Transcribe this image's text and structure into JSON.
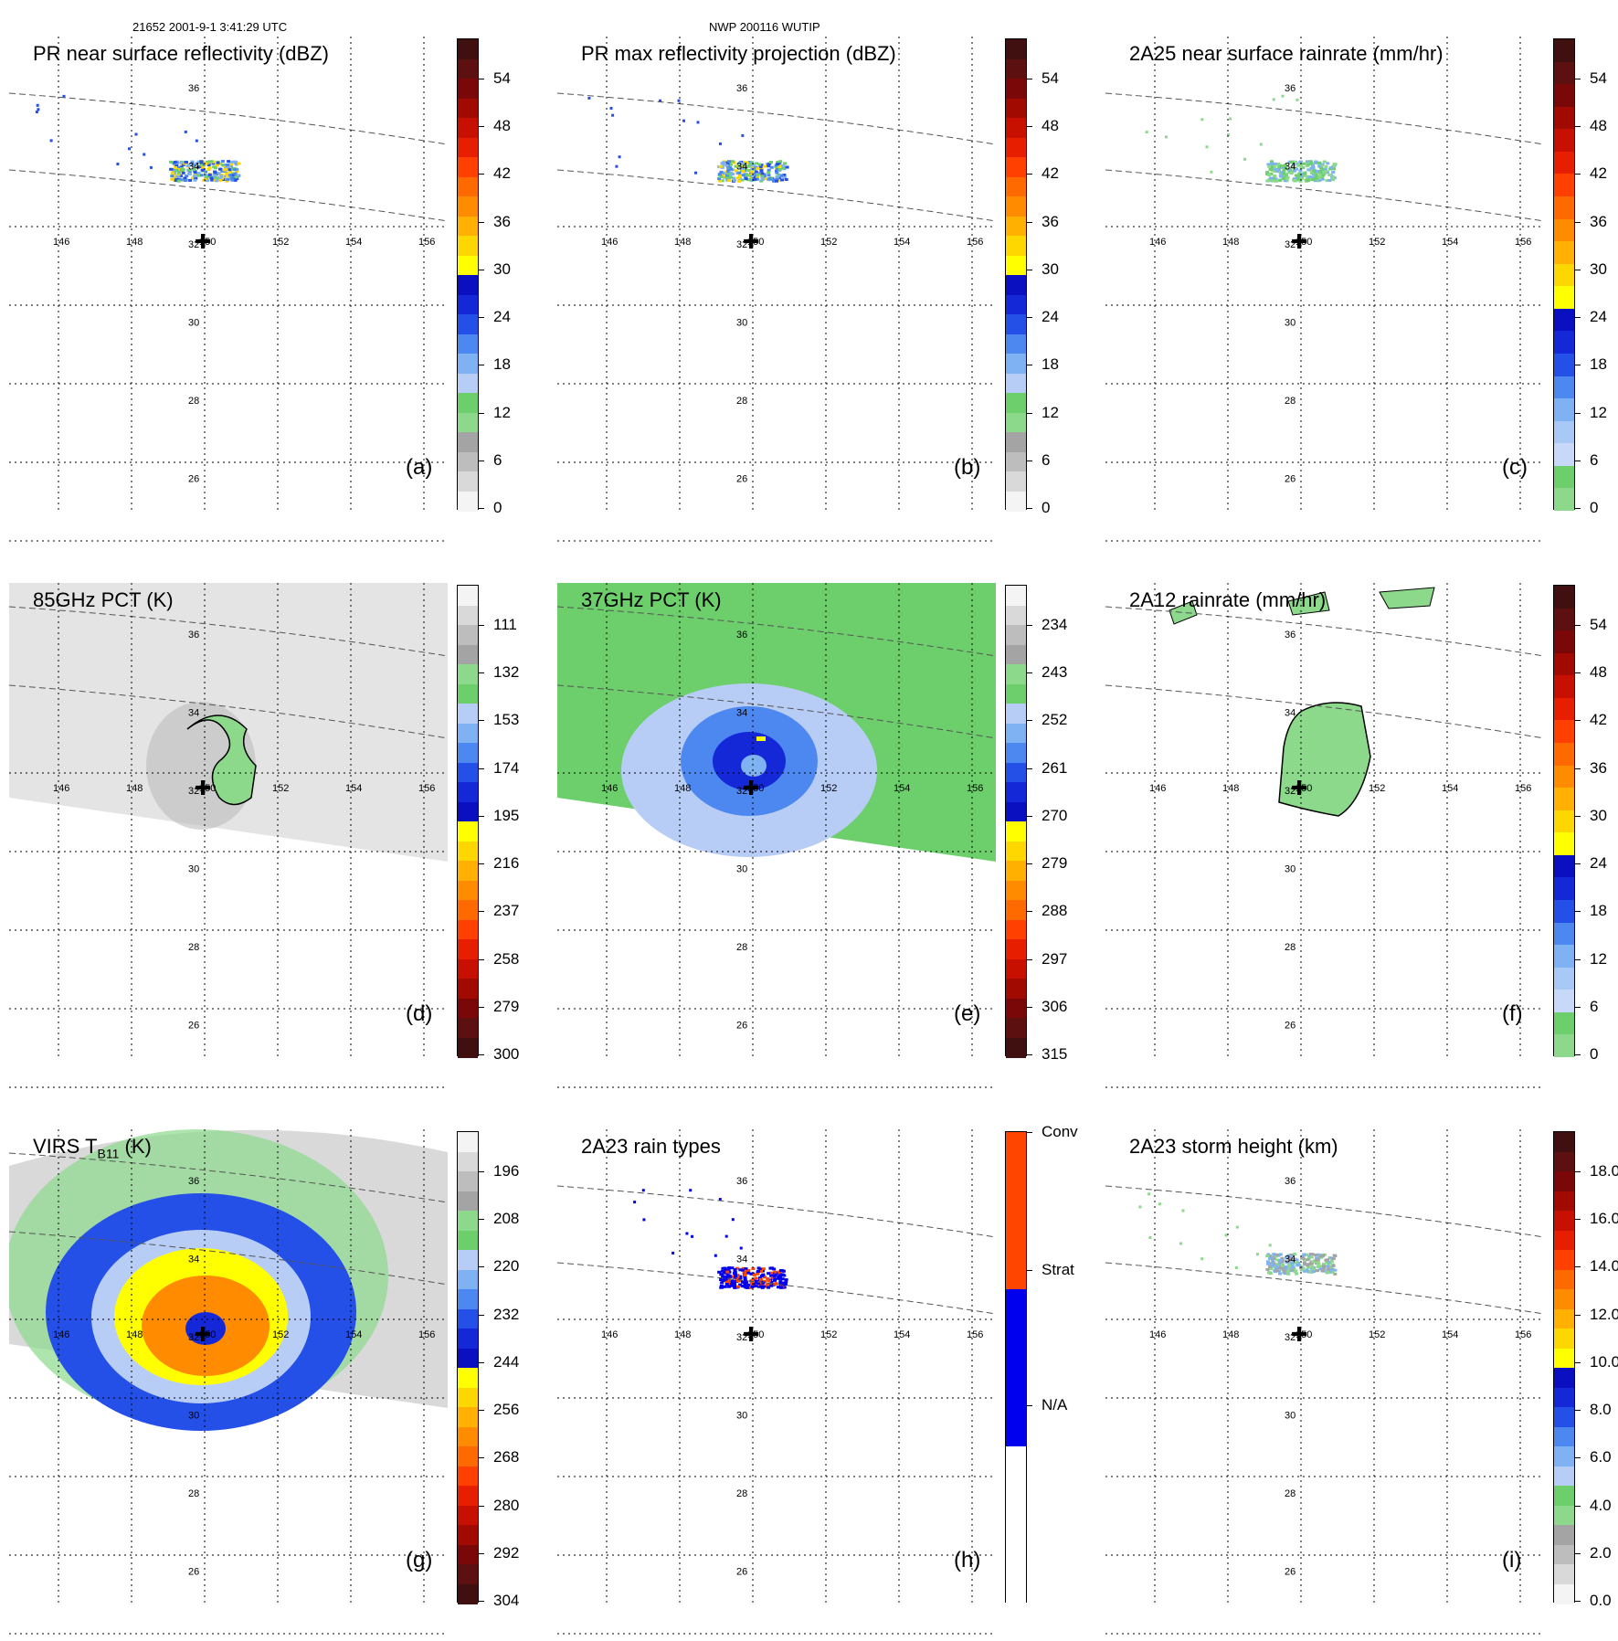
{
  "header": {
    "left": "21652 2001-9-1 3:41:29 UTC",
    "center": "NWP 200116 WUTIP"
  },
  "grid": {
    "lon_labels": [
      "146",
      "148",
      "150",
      "152",
      "154",
      "156"
    ],
    "lat_labels": [
      "36",
      "34",
      "32",
      "30",
      "28",
      "26"
    ]
  },
  "palettes": {
    "radar": [
      "#f4f4f4",
      "#d9d9d9",
      "#bdbdbd",
      "#a4a4a4",
      "#8cd98c",
      "#6ccf6c",
      "#b8cdf5",
      "#7fb2f2",
      "#4d88f0",
      "#2450e8",
      "#1428d8",
      "#0a10c0",
      "#ffff00",
      "#ffd700",
      "#ffb000",
      "#ff8c00",
      "#ff6a00",
      "#ff4000",
      "#e81e00",
      "#c81000",
      "#a00a00",
      "#7a0808",
      "#5c1010",
      "#401010"
    ],
    "radar_r": [
      "#401010",
      "#5c1010",
      "#7a0808",
      "#a00a00",
      "#c81000",
      "#e81e00",
      "#ff4000",
      "#ff6a00",
      "#ff8c00",
      "#ffb000",
      "#ffd700",
      "#ffff00",
      "#0a10c0",
      "#1428d8",
      "#2450e8",
      "#4d88f0",
      "#7fb2f2",
      "#b8cdf5",
      "#6ccf6c",
      "#8cd98c",
      "#a4a4a4",
      "#bdbdbd",
      "#d9d9d9",
      "#f4f4f4"
    ],
    "rain": [
      "#8cd98c",
      "#6ccf6c",
      "#c8d8f8",
      "#a8c8f5",
      "#7fb2f2",
      "#4d88f0",
      "#2450e8",
      "#1428d8",
      "#0a10c0",
      "#ffff00",
      "#ffd700",
      "#ffb000",
      "#ff8c00",
      "#ff6a00",
      "#ff4000",
      "#e81e00",
      "#c81000",
      "#a00a00",
      "#7a0808",
      "#5c1010",
      "#401010"
    ],
    "rtype": [
      "#ffffff",
      "#0000ee",
      "#ff4500"
    ]
  },
  "panels": [
    {
      "id": "a",
      "title": "PR near surface reflectivity (dBZ)",
      "label": "(a)",
      "palette": "radar",
      "ticks": [
        "54",
        "48",
        "42",
        "36",
        "30",
        "24",
        "18",
        "12",
        "6",
        "0"
      ]
    },
    {
      "id": "b",
      "title": "PR max reflectivity projection (dBZ)",
      "label": "(b)",
      "palette": "radar",
      "ticks": [
        "54",
        "48",
        "42",
        "36",
        "30",
        "24",
        "18",
        "12",
        "6",
        "0"
      ]
    },
    {
      "id": "c",
      "title": "2A25 near surface rainrate (mm/hr)",
      "label": "(c)",
      "palette": "rain",
      "ticks": [
        "54",
        "48",
        "42",
        "36",
        "30",
        "24",
        "18",
        "12",
        "6",
        "0"
      ]
    },
    {
      "id": "d",
      "title": "85GHz PCT (K)",
      "label": "(d)",
      "palette": "radar_r",
      "ticks": [
        "111",
        "132",
        "153",
        "174",
        "195",
        "216",
        "237",
        "258",
        "279",
        "300"
      ]
    },
    {
      "id": "e",
      "title": "37GHz PCT (K)",
      "label": "(e)",
      "palette": "radar_r",
      "ticks": [
        "234",
        "243",
        "252",
        "261",
        "270",
        "279",
        "288",
        "297",
        "306",
        "315"
      ]
    },
    {
      "id": "f",
      "title": "2A12 rainrate (mm/hr)",
      "label": "(f)",
      "palette": "rain",
      "ticks": [
        "54",
        "48",
        "42",
        "36",
        "30",
        "24",
        "18",
        "12",
        "6",
        "0"
      ]
    },
    {
      "id": "g",
      "title_main": "VIRS T",
      "title_sub": "B11",
      "title_tail": " (K)",
      "label": "(g)",
      "palette": "radar_r",
      "ticks": [
        "196",
        "208",
        "220",
        "232",
        "244",
        "256",
        "268",
        "280",
        "292",
        "304"
      ]
    },
    {
      "id": "h",
      "title": "2A23 rain types",
      "label": "(h)",
      "palette": "rtype",
      "ticks": [
        "Conv",
        "Strat",
        "N/A"
      ]
    },
    {
      "id": "i",
      "title": "2A23 storm height (km)",
      "label": "(i)",
      "palette": "radar",
      "ticks": [
        "18.0",
        "16.0",
        "14.0",
        "12.0",
        "10.0",
        "8.0",
        "6.0",
        "4.0",
        "2.0",
        "0.0"
      ]
    }
  ]
}
